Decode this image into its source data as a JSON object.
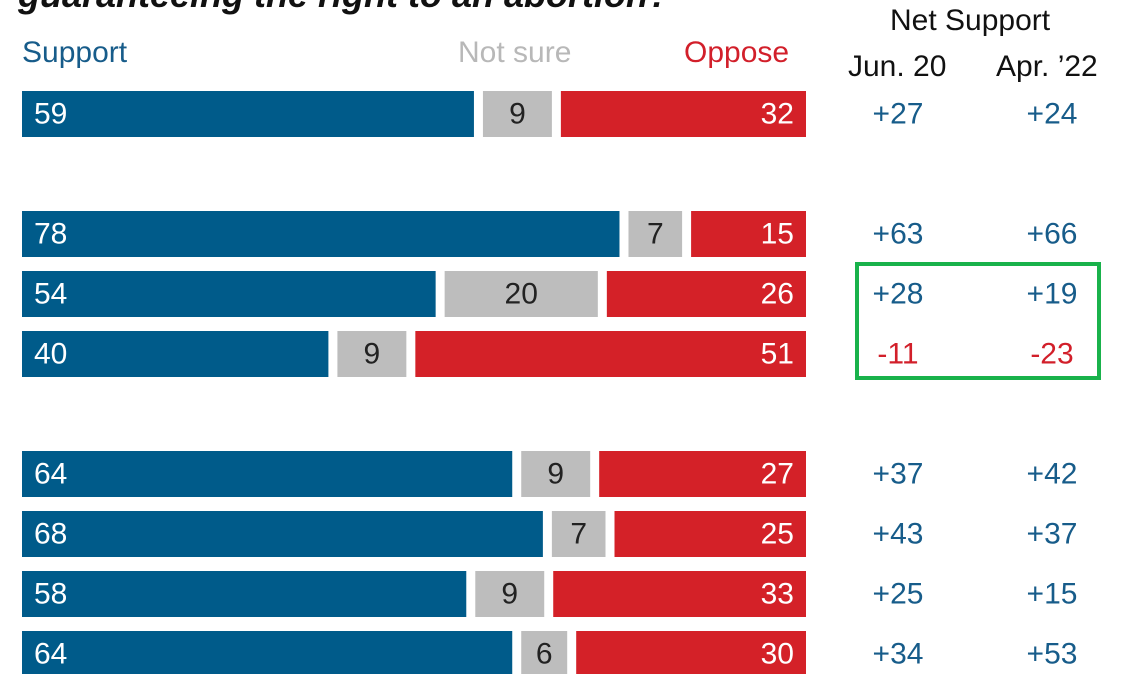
{
  "title": "guaranteeing the right to an abortion?",
  "headers": {
    "support": "Support",
    "not_sure": "Not sure",
    "oppose": "Oppose",
    "net_support": "Net Support",
    "period_current": "Jun. 20",
    "period_previous": "Apr. ’22"
  },
  "colors": {
    "support": "#005b8a",
    "not_sure": "#bdbdbd",
    "oppose": "#d42128",
    "net_positive": "#175c8a",
    "net_negative": "#d21f2a",
    "highlight": "#19b24b"
  },
  "chart_data": {
    "type": "bar",
    "stacked": true,
    "orientation": "horizontal",
    "series_names": [
      "Support",
      "Not sure",
      "Oppose"
    ],
    "rows": [
      {
        "support": 59,
        "not_sure": 9,
        "oppose": 32,
        "net_jun": "+27",
        "net_apr": "+24"
      },
      {
        "support": 78,
        "not_sure": 7,
        "oppose": 15,
        "net_jun": "+63",
        "net_apr": "+66"
      },
      {
        "support": 54,
        "not_sure": 20,
        "oppose": 26,
        "net_jun": "+28",
        "net_apr": "+19"
      },
      {
        "support": 40,
        "not_sure": 9,
        "oppose": 51,
        "net_jun": "-11",
        "net_apr": "-23"
      },
      {
        "support": 64,
        "not_sure": 9,
        "oppose": 27,
        "net_jun": "+37",
        "net_apr": "+42"
      },
      {
        "support": 68,
        "not_sure": 7,
        "oppose": 25,
        "net_jun": "+43",
        "net_apr": "+37"
      },
      {
        "support": 58,
        "not_sure": 9,
        "oppose": 33,
        "net_jun": "+25",
        "net_apr": "+15"
      },
      {
        "support": 64,
        "not_sure": 6,
        "oppose": 30,
        "net_jun": "+34",
        "net_apr": "+53"
      }
    ],
    "highlighted_rows": [
      2,
      3
    ]
  }
}
